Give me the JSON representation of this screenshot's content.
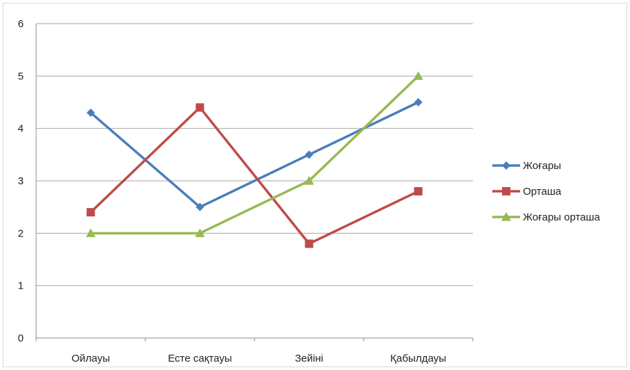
{
  "chart_data": {
    "type": "line",
    "title": "",
    "xlabel": "",
    "ylabel": "",
    "categories": [
      "Ойлауы",
      "Есте сақтауы",
      "Зейіні",
      "Қабылдауы"
    ],
    "ylim": [
      0,
      6
    ],
    "yticks": [
      0,
      1,
      2,
      3,
      4,
      5,
      6
    ],
    "grid": true,
    "legend_position": "right",
    "series": [
      {
        "name": "Жоғары",
        "values": [
          4.3,
          2.5,
          3.5,
          4.5
        ],
        "color": "#4a7ebb",
        "marker": "diamond"
      },
      {
        "name": "Орташа",
        "values": [
          2.4,
          4.4,
          1.8,
          2.8
        ],
        "color": "#be4b48",
        "marker": "square"
      },
      {
        "name": "Жоғары орташа",
        "values": [
          2.0,
          2.0,
          3.0,
          5.0
        ],
        "color": "#98b954",
        "marker": "triangle"
      }
    ]
  }
}
